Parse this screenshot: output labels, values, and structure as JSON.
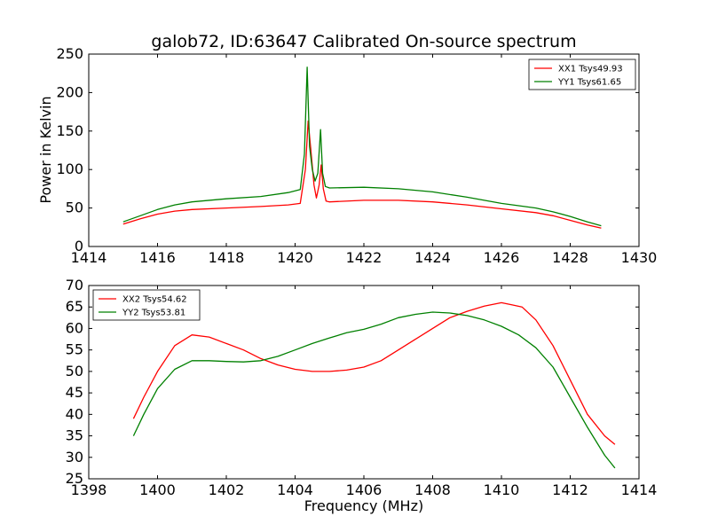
{
  "chart_data": [
    {
      "type": "line",
      "title": "galob72, ID:63647 Calibrated On-source spectrum",
      "xlabel": "",
      "ylabel": "Power in Kelvin",
      "xlim": [
        1414,
        1430
      ],
      "ylim": [
        0,
        250
      ],
      "xticks": [
        "1414",
        "1416",
        "1418",
        "1420",
        "1422",
        "1424",
        "1426",
        "1428",
        "1430"
      ],
      "yticks": [
        "0",
        "50",
        "100",
        "150",
        "200",
        "250"
      ],
      "legend": "top-right",
      "series": [
        {
          "name": "XX1 Tsys49.93",
          "color": "#ff0000",
          "x": [
            1415,
            1415.5,
            1416,
            1416.5,
            1417,
            1418,
            1419,
            1419.8,
            1420.15,
            1420.3,
            1420.38,
            1420.45,
            1420.55,
            1420.62,
            1420.7,
            1420.76,
            1420.82,
            1420.9,
            1421,
            1422,
            1423,
            1424,
            1425,
            1426,
            1427,
            1427.5,
            1428,
            1428.5,
            1428.9
          ],
          "y": [
            29,
            36,
            42,
            46,
            48,
            50,
            52,
            54,
            56,
            100,
            163,
            130,
            80,
            63,
            80,
            106,
            75,
            59,
            58,
            60,
            60,
            58,
            54,
            49,
            44,
            40,
            34,
            28,
            24
          ]
        },
        {
          "name": "YY1 Tsys61.65",
          "color": "#008000",
          "x": [
            1415,
            1415.5,
            1416,
            1416.5,
            1417,
            1418,
            1419,
            1419.8,
            1420.15,
            1420.27,
            1420.35,
            1420.42,
            1420.5,
            1420.58,
            1420.66,
            1420.74,
            1420.8,
            1420.88,
            1421,
            1422,
            1423,
            1424,
            1425,
            1426,
            1427,
            1427.5,
            1428,
            1428.5,
            1428.9
          ],
          "y": [
            32,
            40,
            48,
            54,
            58,
            62,
            65,
            70,
            74,
            120,
            233,
            130,
            100,
            85,
            95,
            152,
            95,
            78,
            76,
            77,
            75,
            71,
            64,
            56,
            50,
            45,
            39,
            32,
            27
          ]
        }
      ]
    },
    {
      "type": "line",
      "title": "",
      "xlabel": "Frequency (MHz)",
      "ylabel": "",
      "xlim": [
        1398,
        1414
      ],
      "ylim": [
        25,
        70
      ],
      "xticks": [
        "1398",
        "1400",
        "1402",
        "1404",
        "1406",
        "1408",
        "1410",
        "1412",
        "1414"
      ],
      "yticks": [
        "25",
        "30",
        "35",
        "40",
        "45",
        "50",
        "55",
        "60",
        "65",
        "70"
      ],
      "legend": "top-left",
      "series": [
        {
          "name": "XX2 Tsys54.62",
          "color": "#ff0000",
          "x": [
            1399.3,
            1399.6,
            1400,
            1400.5,
            1401,
            1401.5,
            1402,
            1402.5,
            1403,
            1403.5,
            1404,
            1404.5,
            1405,
            1405.5,
            1406,
            1406.5,
            1407,
            1407.5,
            1408,
            1408.5,
            1409,
            1409.5,
            1410,
            1410.3,
            1410.6,
            1411,
            1411.5,
            1412,
            1412.5,
            1413,
            1413.3
          ],
          "y": [
            39,
            44,
            50,
            56,
            58.5,
            58,
            56.5,
            55,
            53,
            51.5,
            50.5,
            50,
            50,
            50.3,
            51,
            52.5,
            55,
            57.5,
            60,
            62.5,
            64,
            65.2,
            66,
            65.5,
            65,
            62,
            56,
            48,
            40,
            35,
            33
          ]
        },
        {
          "name": "YY2 Tsys53.81",
          "color": "#008000",
          "x": [
            1399.3,
            1399.6,
            1400,
            1400.5,
            1401,
            1401.5,
            1402,
            1402.5,
            1403,
            1403.5,
            1404,
            1404.5,
            1405,
            1405.5,
            1406,
            1406.5,
            1407,
            1407.5,
            1408,
            1408.5,
            1409,
            1409.5,
            1410,
            1410.5,
            1411,
            1411.5,
            1412,
            1412.5,
            1413,
            1413.3
          ],
          "y": [
            35,
            40,
            46,
            50.5,
            52.5,
            52.5,
            52.3,
            52.2,
            52.5,
            53.5,
            55,
            56.5,
            57.8,
            59,
            59.8,
            61,
            62.5,
            63.3,
            63.8,
            63.6,
            63,
            62,
            60.5,
            58.5,
            55.5,
            51,
            44,
            37,
            30.5,
            27.5
          ]
        }
      ]
    }
  ]
}
